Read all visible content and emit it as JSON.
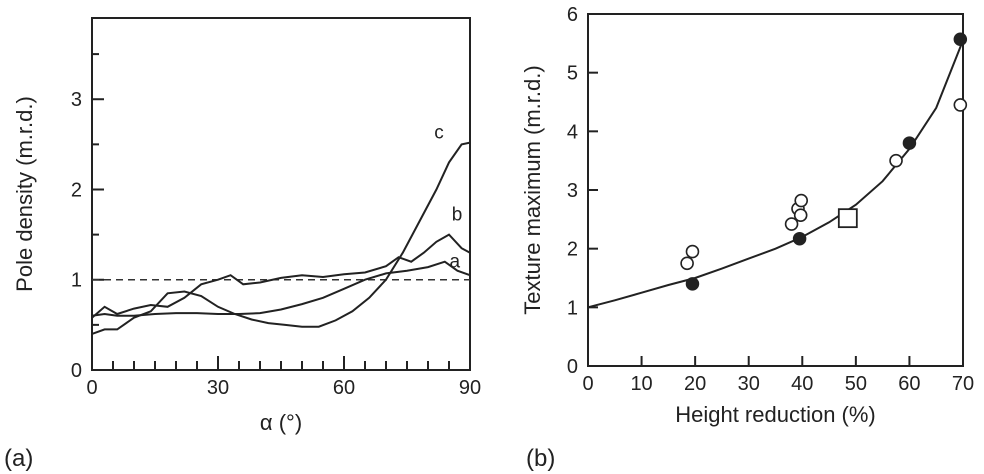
{
  "chart_data": [
    {
      "panel": "(a)",
      "type": "line",
      "title": "",
      "xlabel": "α (°)",
      "ylabel": "Pole density (m.r.d.)",
      "xlim": [
        0,
        90
      ],
      "ylim": [
        0,
        3.9
      ],
      "xticks": [
        0,
        30,
        60,
        90
      ],
      "yticks": [
        1,
        2,
        3
      ],
      "grid": false,
      "reference_line": {
        "y": 1,
        "style": "dashed"
      },
      "series": [
        {
          "name": "a",
          "x": [
            0,
            3,
            6,
            10,
            15,
            20,
            25,
            30,
            35,
            40,
            45,
            50,
            55,
            60,
            65,
            70,
            75,
            80,
            84,
            87,
            90
          ],
          "y": [
            0.6,
            0.62,
            0.6,
            0.6,
            0.62,
            0.63,
            0.63,
            0.62,
            0.62,
            0.63,
            0.67,
            0.73,
            0.8,
            0.9,
            1.0,
            1.07,
            1.1,
            1.14,
            1.2,
            1.1,
            1.05
          ]
        },
        {
          "name": "b",
          "x": [
            0,
            3,
            6,
            10,
            14,
            18,
            22,
            26,
            30,
            33,
            36,
            40,
            45,
            50,
            55,
            60,
            65,
            70,
            73,
            76,
            79,
            82,
            85,
            88,
            90
          ],
          "y": [
            0.58,
            0.7,
            0.62,
            0.68,
            0.72,
            0.7,
            0.8,
            0.95,
            1.0,
            1.05,
            0.95,
            0.97,
            1.02,
            1.05,
            1.03,
            1.06,
            1.08,
            1.15,
            1.25,
            1.2,
            1.3,
            1.42,
            1.5,
            1.35,
            1.3
          ]
        },
        {
          "name": "c",
          "x": [
            0,
            3,
            6,
            10,
            14,
            18,
            22,
            26,
            30,
            34,
            38,
            42,
            46,
            50,
            54,
            58,
            62,
            66,
            70,
            74,
            78,
            82,
            85,
            88,
            90
          ],
          "y": [
            0.4,
            0.45,
            0.45,
            0.58,
            0.65,
            0.85,
            0.87,
            0.82,
            0.7,
            0.62,
            0.56,
            0.52,
            0.5,
            0.48,
            0.48,
            0.55,
            0.65,
            0.8,
            1.0,
            1.3,
            1.65,
            2.0,
            2.3,
            2.5,
            2.52
          ]
        }
      ]
    },
    {
      "panel": "(b)",
      "type": "scatter",
      "title": "",
      "xlabel": "Height reduction (%)",
      "ylabel": "Texture maximum (m.r.d.)",
      "xlim": [
        0,
        70
      ],
      "ylim": [
        0,
        6
      ],
      "xticks": [
        0,
        10,
        20,
        30,
        40,
        50,
        60,
        70
      ],
      "yticks": [
        0,
        1,
        2,
        3,
        4,
        5,
        6
      ],
      "grid": false,
      "series": [
        {
          "marker": "filled-circle",
          "x": [
            19.5,
            39.5,
            60,
            69.5
          ],
          "y": [
            1.4,
            2.17,
            3.8,
            5.57
          ]
        },
        {
          "marker": "open-circle",
          "x": [
            18.5,
            19.5,
            38,
            39.2,
            39.8,
            39.7,
            57.5,
            69.5
          ],
          "y": [
            1.75,
            1.95,
            2.42,
            2.68,
            2.82,
            2.57,
            3.5,
            4.45
          ]
        },
        {
          "marker": "open-square",
          "x": [
            48.5
          ],
          "y": [
            2.52
          ]
        },
        {
          "marker": "fit-line",
          "x": [
            0,
            5,
            10,
            15,
            20,
            25,
            30,
            35,
            40,
            45,
            50,
            55,
            60,
            65,
            70
          ],
          "y": [
            1.0,
            1.12,
            1.25,
            1.38,
            1.5,
            1.66,
            1.83,
            2.0,
            2.2,
            2.45,
            2.75,
            3.15,
            3.7,
            4.4,
            5.55
          ]
        }
      ]
    }
  ]
}
